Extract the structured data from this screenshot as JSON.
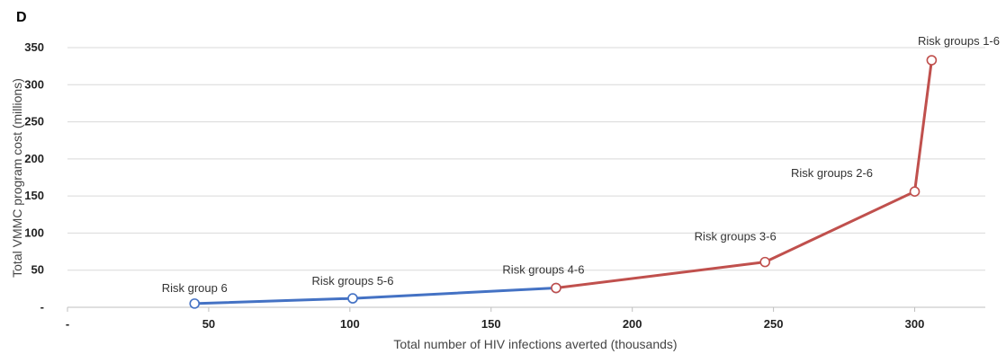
{
  "panel_label": "D",
  "chart_data": {
    "type": "line",
    "xlabel": "Total number of HIV infections averted (thousands)",
    "ylabel": "Total VMMC program cost (millions)",
    "xlim": [
      0,
      325
    ],
    "ylim": [
      0,
      350
    ],
    "x_ticks": [
      {
        "value": 0,
        "label": "-"
      },
      {
        "value": 50,
        "label": "50"
      },
      {
        "value": 100,
        "label": "100"
      },
      {
        "value": 150,
        "label": "150"
      },
      {
        "value": 200,
        "label": "200"
      },
      {
        "value": 250,
        "label": "250"
      },
      {
        "value": 300,
        "label": "300"
      }
    ],
    "y_ticks": [
      {
        "value": 0,
        "label": "-"
      },
      {
        "value": 50,
        "label": "50"
      },
      {
        "value": 100,
        "label": "100"
      },
      {
        "value": 150,
        "label": "150"
      },
      {
        "value": 200,
        "label": "200"
      },
      {
        "value": 250,
        "label": "250"
      },
      {
        "value": 300,
        "label": "300"
      },
      {
        "value": 350,
        "label": "350"
      }
    ],
    "grid": "horizontal",
    "series": [
      {
        "color": "#4472C4",
        "points": [
          {
            "x": 45,
            "y": 5,
            "label": "Risk group 6"
          },
          {
            "x": 101,
            "y": 12,
            "label": "Risk groups 5-6"
          },
          {
            "x": 173,
            "y": 26,
            "label": "Risk groups 4-6"
          }
        ]
      },
      {
        "color": "#C0504D",
        "points": [
          {
            "x": 173,
            "y": 26,
            "label": "Risk groups 4-6"
          },
          {
            "x": 247,
            "y": 61,
            "label": "Risk groups 3-6"
          },
          {
            "x": 300,
            "y": 156,
            "label": "Risk groups 2-6"
          },
          {
            "x": 306,
            "y": 333,
            "label": "Risk groups 1-6"
          }
        ]
      }
    ]
  }
}
